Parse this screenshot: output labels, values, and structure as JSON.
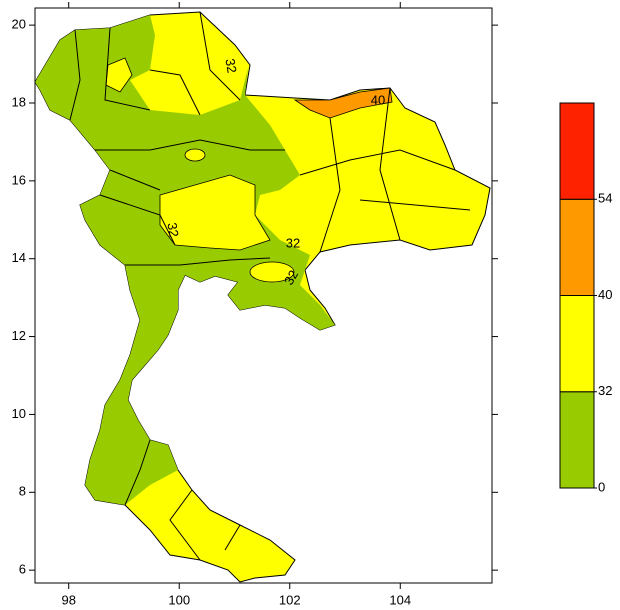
{
  "map": {
    "xlim": [
      97.39,
      105.66
    ],
    "ylim": [
      5.67,
      20.44
    ],
    "xticks": [
      98,
      100,
      102,
      104
    ],
    "yticks": [
      6,
      8,
      10,
      12,
      14,
      16,
      18,
      20
    ],
    "contour_labels": [
      "32",
      "32",
      "32",
      "32",
      "40"
    ],
    "colorbar": {
      "ticks": [
        0,
        32,
        40,
        54
      ],
      "colors": [
        "#99cc00",
        "#ffff00",
        "#ff9900",
        "#ff2200"
      ]
    }
  }
}
